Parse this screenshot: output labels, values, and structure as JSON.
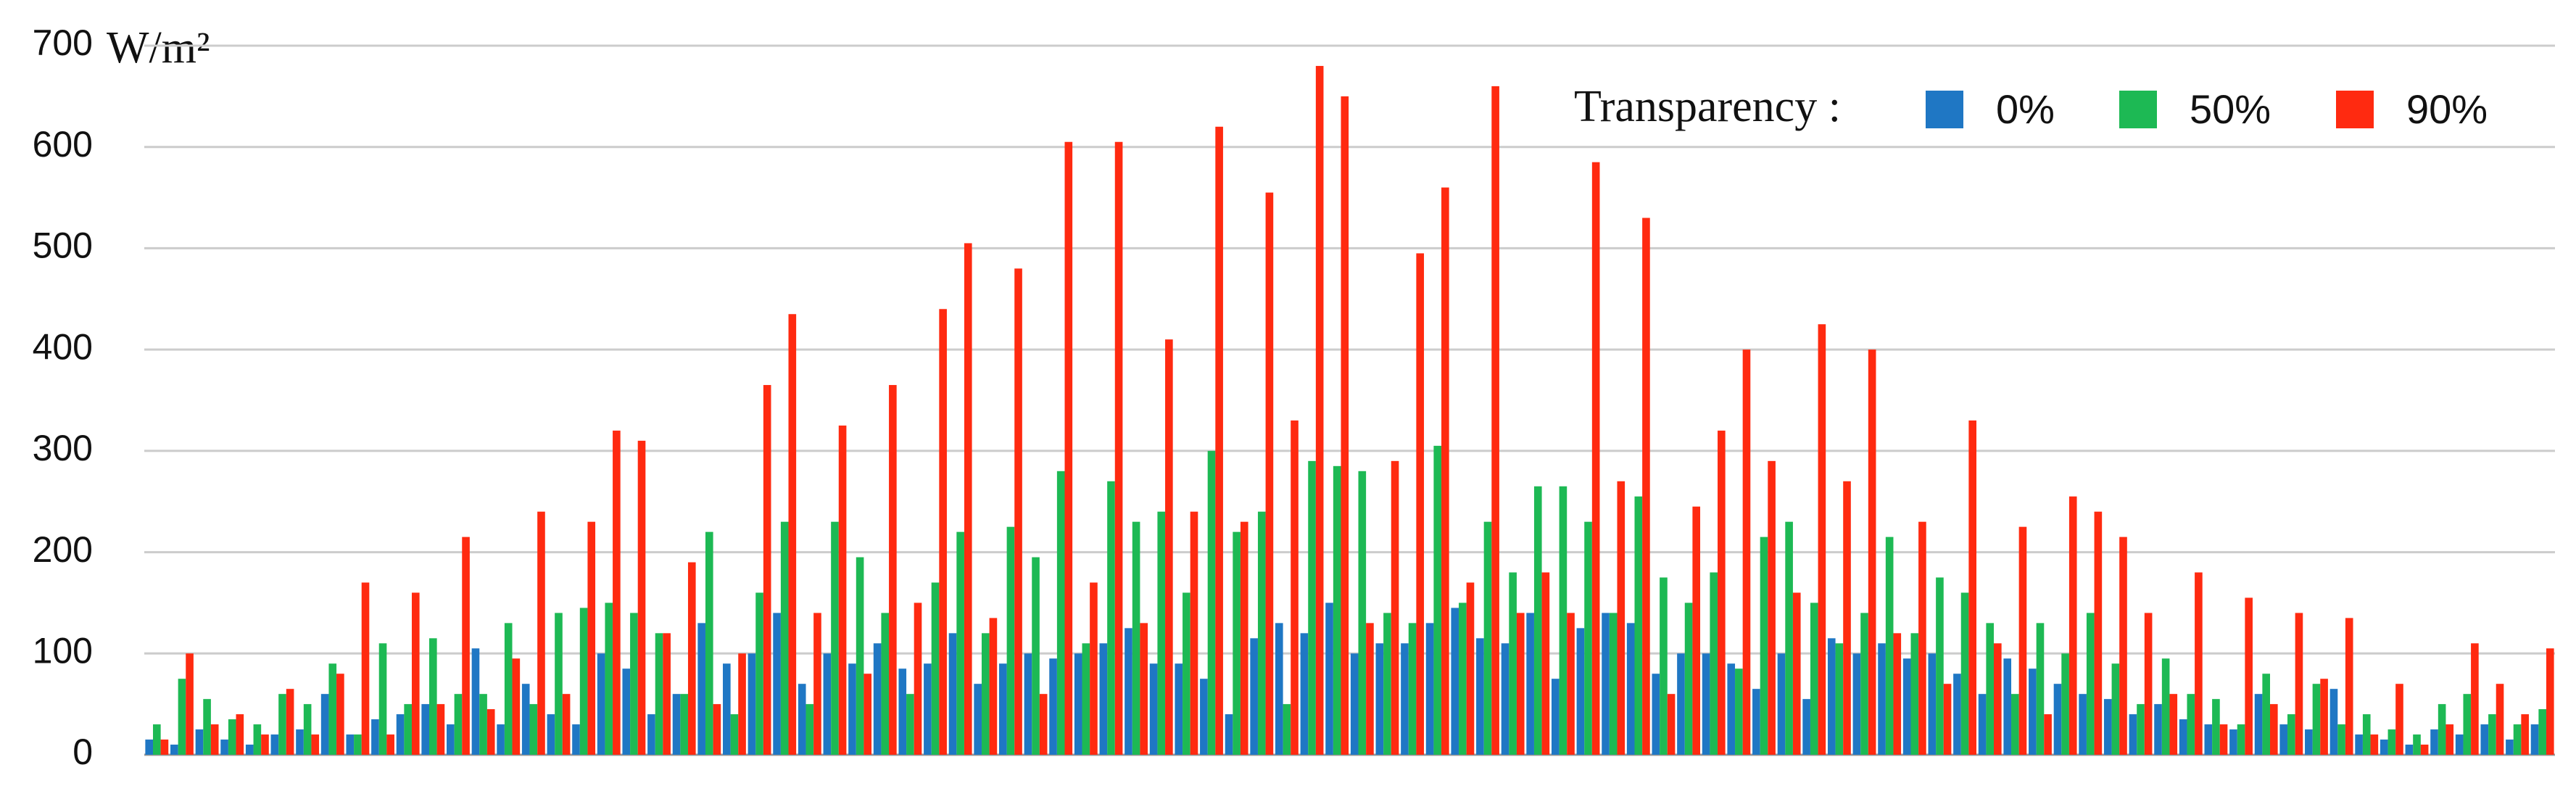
{
  "chart_data": {
    "type": "bar",
    "y_label": "W/m²",
    "legend_title": "Transparency :",
    "legend": "top-right",
    "grid": true,
    "ylim": [
      0,
      700
    ],
    "yticks": [
      0,
      100,
      200,
      300,
      400,
      500,
      600,
      700
    ],
    "categories": [
      null,
      null,
      null,
      null,
      null,
      null,
      null,
      null,
      null,
      null,
      null,
      null,
      null,
      null,
      null,
      null,
      null,
      null,
      null,
      null,
      null,
      null,
      null,
      null,
      null,
      null,
      null,
      null,
      null,
      null,
      null,
      null,
      null,
      null,
      null,
      null,
      null,
      null,
      null,
      null,
      null,
      null,
      null,
      null,
      null,
      null,
      null,
      null,
      null,
      null,
      null,
      null,
      null,
      null,
      null,
      null,
      null,
      null,
      null,
      null,
      null,
      null,
      null,
      null,
      null,
      null,
      null,
      null,
      null,
      null,
      null,
      null,
      null,
      null,
      null,
      null,
      null,
      null,
      null,
      null,
      null,
      null,
      null,
      null,
      null,
      null,
      null,
      null,
      null,
      null,
      null,
      null,
      null,
      null,
      null,
      null
    ],
    "series": [
      {
        "name": "0%",
        "color": "#1f77c4",
        "values": [
          15,
          10,
          25,
          15,
          10,
          20,
          25,
          60,
          20,
          35,
          40,
          50,
          30,
          105,
          30,
          70,
          40,
          30,
          100,
          85,
          40,
          60,
          130,
          90,
          100,
          140,
          70,
          100,
          90,
          110,
          85,
          90,
          120,
          70,
          90,
          100,
          95,
          100,
          110,
          125,
          90,
          90,
          75,
          40,
          115,
          130,
          120,
          150,
          100,
          110,
          110,
          130,
          145,
          115,
          110,
          140,
          75,
          125,
          140,
          130,
          80,
          100,
          100,
          90,
          65,
          100,
          55,
          115,
          100,
          110,
          95,
          100,
          80,
          60,
          95,
          85,
          70,
          60,
          55,
          40,
          50,
          35,
          30,
          25,
          60,
          30,
          25,
          65,
          20,
          15,
          10,
          25,
          20,
          30,
          15,
          30
        ]
      },
      {
        "name": "50%",
        "color": "#1db954",
        "values": [
          30,
          75,
          55,
          35,
          30,
          60,
          50,
          90,
          20,
          110,
          50,
          115,
          60,
          60,
          130,
          50,
          140,
          145,
          150,
          140,
          120,
          60,
          220,
          40,
          160,
          230,
          50,
          230,
          195,
          140,
          60,
          170,
          220,
          120,
          225,
          195,
          280,
          110,
          270,
          230,
          240,
          160,
          300,
          220,
          240,
          50,
          290,
          285,
          280,
          140,
          130,
          305,
          150,
          230,
          180,
          265,
          265,
          230,
          140,
          255,
          175,
          150,
          180,
          85,
          215,
          230,
          150,
          110,
          140,
          215,
          120,
          175,
          160,
          130,
          60,
          130,
          100,
          140,
          90,
          50,
          95,
          60,
          55,
          30,
          80,
          40,
          70,
          30,
          40,
          25,
          20,
          50,
          60,
          40,
          30,
          45
        ]
      },
      {
        "name": "90%",
        "color": "#ff2a10",
        "values": [
          15,
          100,
          30,
          40,
          20,
          65,
          20,
          80,
          170,
          20,
          160,
          50,
          215,
          45,
          95,
          240,
          60,
          230,
          320,
          310,
          120,
          190,
          50,
          100,
          365,
          435,
          140,
          325,
          80,
          365,
          150,
          440,
          505,
          135,
          480,
          60,
          605,
          170,
          605,
          130,
          410,
          240,
          620,
          230,
          555,
          330,
          680,
          650,
          130,
          290,
          495,
          560,
          170,
          660,
          140,
          180,
          140,
          585,
          270,
          530,
          60,
          245,
          320,
          400,
          290,
          160,
          425,
          270,
          400,
          120,
          230,
          70,
          330,
          110,
          225,
          40,
          255,
          240,
          215,
          140,
          60,
          180,
          30,
          155,
          50,
          140,
          75,
          135,
          20,
          70,
          10,
          30,
          110,
          70,
          40,
          105
        ]
      }
    ]
  }
}
